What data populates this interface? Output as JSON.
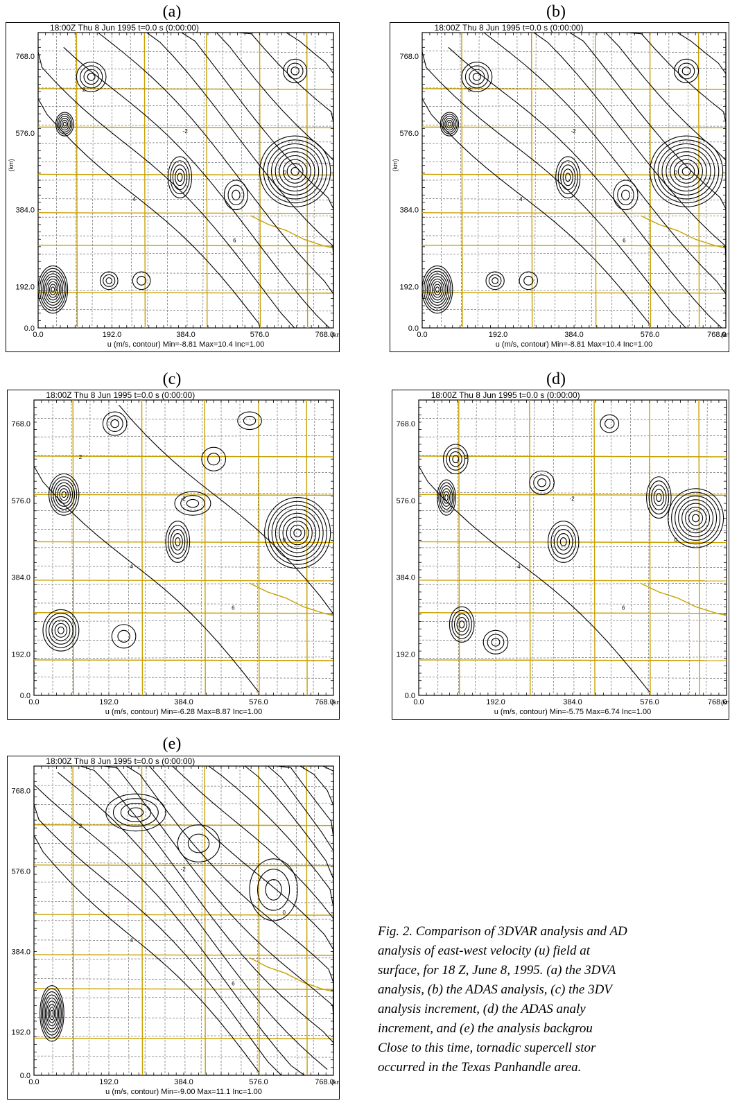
{
  "panels": [
    {
      "id": "a",
      "label": "(a)",
      "header": "18:00Z Thu  8 Jun 1995       t=0.0 s (0:00:00)",
      "footer": "u (m/s, contour)  Min=-8.81  Max=10.4  Inc=1.00",
      "yticks": [
        "768.0",
        "576.0",
        "384.0",
        "192.0",
        "0.0"
      ],
      "xticks": [
        "0.0",
        "192.0",
        "384.0",
        "576.0",
        "768.0"
      ],
      "x_unit": "(km)",
      "y_unit": "(km)"
    },
    {
      "id": "b",
      "label": "(b)",
      "header": "18:00Z Thu  8 Jun 1995       t=0.0 s (0:00:00)",
      "footer": "u (m/s, contour)  Min=-8.81  Max=10.4  Inc=1.00",
      "yticks": [
        "768.0",
        "576.0",
        "384.0",
        "192.0",
        "0.0"
      ],
      "xticks": [
        "0.0",
        "192.0",
        "384.0",
        "576.0",
        "768.0"
      ],
      "x_unit": "(km)",
      "y_unit": "(km)"
    },
    {
      "id": "c",
      "label": "(c)",
      "header": "18:00Z Thu  8 Jun 1995       t=0.0 s (0:00:00)",
      "footer": "u (m/s, contour)  Min=-6.28  Max=8.87  Inc=1.00",
      "yticks": [
        "768.0",
        "576.0",
        "384.0",
        "192.0",
        "0.0"
      ],
      "xticks": [
        "0.0",
        "192.0",
        "384.0",
        "576.0",
        "768.0"
      ],
      "x_unit": "(km)",
      "y_unit": ""
    },
    {
      "id": "d",
      "label": "(d)",
      "header": "18:00Z Thu  8 Jun 1995       t=0.0 s (0:00:00)",
      "footer": "u (m/s, contour)  Min=-5.75  Max=6.74  Inc=1.00",
      "yticks": [
        "768.0",
        "576.0",
        "384.0",
        "192.0",
        "0.0"
      ],
      "xticks": [
        "0.0",
        "192.0",
        "384.0",
        "576.0",
        "768.0"
      ],
      "x_unit": "(km)",
      "y_unit": ""
    },
    {
      "id": "e",
      "label": "(e)",
      "header": "18:00Z Thu  8 Jun 1995       t=0.0 s (0:00:00)",
      "footer": "u (m/s, contour)  Min=-9.00  Max=11.1  Inc=1.00",
      "yticks": [
        "768.0",
        "576.0",
        "384.0",
        "192.0",
        "0.0"
      ],
      "xticks": [
        "0.0",
        "192.0",
        "384.0",
        "576.0",
        "768.0"
      ],
      "x_unit": "(km)",
      "y_unit": ""
    }
  ],
  "caption_lines": [
    "Fig. 2. Comparison of 3DVAR analysis and AD",
    "analysis of east-west velocity (u) field at",
    "surface, for 18 Z, June 8, 1995. (a) the 3DVA",
    "analysis,  (b) the ADAS analysis, (c) the 3DV",
    "analysis increment, (d) the ADAS analy",
    "increment, and (e) the analysis backgrou",
    "Close to this time, tornadic supercell stor",
    "occurred in the Texas Panhandle area."
  ],
  "colors": {
    "map_lines": "#c8a000",
    "contours": "#000000",
    "county": "#555555"
  }
}
